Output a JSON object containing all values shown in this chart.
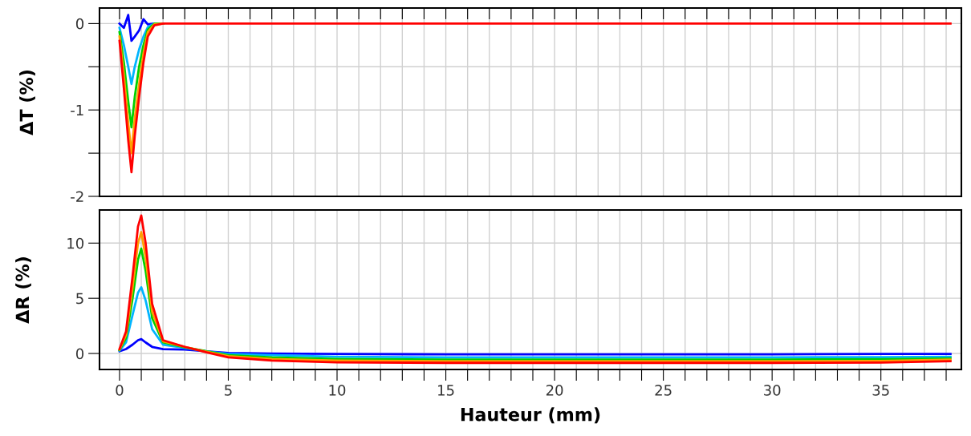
{
  "chart_data": [
    {
      "type": "line",
      "ylabel": "ΔT (%)",
      "xlim": [
        -0.92,
        38.7
      ],
      "ylim": [
        -2,
        0.18
      ],
      "xticks": [
        {
          "value": 0,
          "label": null
        },
        {
          "value": 1,
          "label": null
        },
        {
          "value": 2,
          "label": null
        },
        {
          "value": 3,
          "label": null
        },
        {
          "value": 4,
          "label": null
        },
        {
          "value": 5,
          "label": null
        },
        {
          "value": 6,
          "label": null
        },
        {
          "value": 7,
          "label": null
        },
        {
          "value": 8,
          "label": null
        },
        {
          "value": 9,
          "label": null
        },
        {
          "value": 10,
          "label": null
        },
        {
          "value": 11,
          "label": null
        },
        {
          "value": 12,
          "label": null
        },
        {
          "value": 13,
          "label": null
        },
        {
          "value": 14,
          "label": null
        },
        {
          "value": 15,
          "label": null
        },
        {
          "value": 16,
          "label": null
        },
        {
          "value": 17,
          "label": null
        },
        {
          "value": 18,
          "label": null
        },
        {
          "value": 19,
          "label": null
        },
        {
          "value": 20,
          "label": null
        },
        {
          "value": 21,
          "label": null
        },
        {
          "value": 22,
          "label": null
        },
        {
          "value": 23,
          "label": null
        },
        {
          "value": 24,
          "label": null
        },
        {
          "value": 25,
          "label": null
        },
        {
          "value": 26,
          "label": null
        },
        {
          "value": 27,
          "label": null
        },
        {
          "value": 28,
          "label": null
        },
        {
          "value": 29,
          "label": null
        },
        {
          "value": 30,
          "label": null
        },
        {
          "value": 31,
          "label": null
        },
        {
          "value": 32,
          "label": null
        },
        {
          "value": 33,
          "label": null
        },
        {
          "value": 34,
          "label": null
        },
        {
          "value": 35,
          "label": null
        },
        {
          "value": 36,
          "label": null
        },
        {
          "value": 37,
          "label": null
        },
        {
          "value": 38,
          "label": null
        }
      ],
      "yticks": [
        0,
        {
          "value": -0.5,
          "label": null
        },
        -1,
        {
          "value": -1.5,
          "label": null
        },
        -2
      ],
      "tick_labels": "y",
      "grid": true,
      "line_style": "solid",
      "marker": "none",
      "x": [
        0,
        0.2,
        0.4,
        0.55,
        0.7,
        0.9,
        1.1,
        1.3,
        1.6,
        2,
        5,
        10,
        20,
        30,
        38.2
      ],
      "series": [
        {
          "color": "#0000ff",
          "values": [
            0,
            -0.05,
            0.1,
            -0.2,
            -0.15,
            -0.08,
            0.05,
            -0.01,
            0,
            0,
            null,
            null,
            null,
            null,
            null
          ]
        },
        {
          "color": "#00b4ff",
          "values": [
            -0.05,
            -0.25,
            -0.5,
            -0.7,
            -0.5,
            -0.3,
            -0.15,
            -0.04,
            0,
            0,
            null,
            null,
            null,
            null,
            null
          ]
        },
        {
          "color": "#00d000",
          "values": [
            -0.1,
            -0.45,
            -0.9,
            -1.2,
            -0.85,
            -0.5,
            -0.25,
            -0.07,
            0,
            0,
            null,
            null,
            null,
            null,
            null
          ]
        },
        {
          "color": "#ffa000",
          "values": [
            -0.15,
            -0.6,
            -1.15,
            -1.5,
            -1.1,
            -0.7,
            -0.35,
            -0.1,
            -0.01,
            0,
            null,
            null,
            null,
            null,
            null
          ]
        },
        {
          "color": "#ff0000",
          "values": [
            -0.2,
            -0.75,
            -1.35,
            -1.72,
            -1.3,
            -0.85,
            -0.45,
            -0.15,
            -0.02,
            0,
            0,
            0,
            0,
            0,
            0
          ]
        }
      ]
    },
    {
      "type": "line",
      "xlabel": "Hauteur (mm)",
      "ylabel": "ΔR (%)",
      "xlim": [
        -0.92,
        38.7
      ],
      "ylim": [
        -1.45,
        13
      ],
      "xticks": [
        0,
        {
          "value": 1,
          "label": null
        },
        {
          "value": 2,
          "label": null
        },
        {
          "value": 3,
          "label": null
        },
        {
          "value": 4,
          "label": null
        },
        5,
        {
          "value": 6,
          "label": null
        },
        {
          "value": 7,
          "label": null
        },
        {
          "value": 8,
          "label": null
        },
        {
          "value": 9,
          "label": null
        },
        10,
        {
          "value": 11,
          "label": null
        },
        {
          "value": 12,
          "label": null
        },
        {
          "value": 13,
          "label": null
        },
        {
          "value": 14,
          "label": null
        },
        15,
        {
          "value": 16,
          "label": null
        },
        {
          "value": 17,
          "label": null
        },
        {
          "value": 18,
          "label": null
        },
        {
          "value": 19,
          "label": null
        },
        20,
        {
          "value": 21,
          "label": null
        },
        {
          "value": 22,
          "label": null
        },
        {
          "value": 23,
          "label": null
        },
        {
          "value": 24,
          "label": null
        },
        25,
        {
          "value": 26,
          "label": null
        },
        {
          "value": 27,
          "label": null
        },
        {
          "value": 28,
          "label": null
        },
        {
          "value": 29,
          "label": null
        },
        30,
        {
          "value": 31,
          "label": null
        },
        {
          "value": 32,
          "label": null
        },
        {
          "value": 33,
          "label": null
        },
        {
          "value": 34,
          "label": null
        },
        35,
        {
          "value": 36,
          "label": null
        },
        {
          "value": 37,
          "label": null
        },
        {
          "value": 38,
          "label": null
        }
      ],
      "yticks": [
        0,
        5,
        10
      ],
      "grid": true,
      "line_style": "solid",
      "marker": "none",
      "x": [
        0,
        0.3,
        0.6,
        0.85,
        1.0,
        1.2,
        1.5,
        2,
        3,
        4,
        5,
        7,
        10,
        15,
        20,
        25,
        30,
        35,
        38.2
      ],
      "series": [
        {
          "color": "#0000ff",
          "values": [
            0.2,
            0.4,
            0.8,
            1.2,
            1.3,
            1.0,
            0.6,
            0.4,
            0.35,
            0.2,
            0.05,
            0,
            -0.05,
            -0.08,
            -0.08,
            -0.08,
            -0.08,
            -0.05,
            -0.05
          ]
        },
        {
          "color": "#00b4ff",
          "values": [
            0.25,
            1.0,
            3.5,
            5.5,
            6,
            4.8,
            2.2,
            0.8,
            0.5,
            0.2,
            -0.05,
            -0.15,
            -0.3,
            -0.35,
            -0.35,
            -0.35,
            -0.35,
            -0.33,
            -0.3
          ]
        },
        {
          "color": "#00d000",
          "values": [
            0.3,
            1.4,
            5,
            8.5,
            9.5,
            7.5,
            3.2,
            1.0,
            0.55,
            0.2,
            -0.15,
            -0.35,
            -0.5,
            -0.55,
            -0.55,
            -0.55,
            -0.55,
            -0.52,
            -0.45
          ]
        },
        {
          "color": "#ffa000",
          "values": [
            0.35,
            1.7,
            6,
            10,
            11,
            8.7,
            3.8,
            1.1,
            0.6,
            0.15,
            -0.25,
            -0.5,
            -0.65,
            -0.7,
            -0.7,
            -0.7,
            -0.7,
            -0.68,
            -0.55
          ]
        },
        {
          "color": "#ff0000",
          "values": [
            0.4,
            2,
            7,
            11.5,
            12.5,
            10,
            4.5,
            1.2,
            0.6,
            0.1,
            -0.35,
            -0.65,
            -0.8,
            -0.85,
            -0.85,
            -0.85,
            -0.85,
            -0.82,
            -0.7
          ]
        }
      ]
    }
  ]
}
